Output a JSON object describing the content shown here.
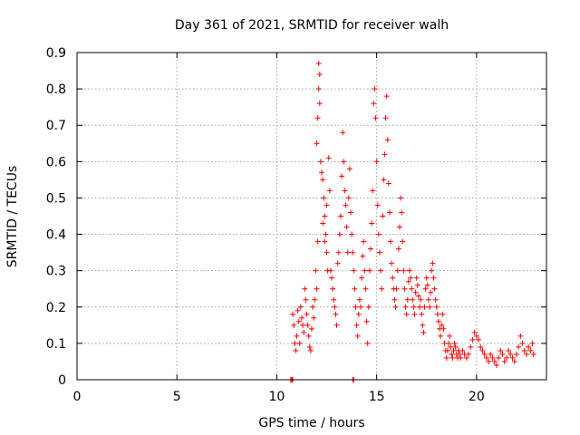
{
  "chart_data": {
    "type": "scatter",
    "title": "Day 361 of 2021, SRMTID for receiver walh",
    "xlabel": "GPS time / hours",
    "ylabel": "SRMTID / TECUs",
    "xlim": [
      0,
      23.5
    ],
    "ylim": [
      0,
      0.9
    ],
    "x_ticks": [
      0,
      5,
      10,
      15,
      20
    ],
    "y_ticks": [
      0,
      0.1,
      0.2,
      0.3,
      0.4,
      0.5,
      0.6,
      0.7,
      0.8,
      0.9
    ],
    "x_tick_labels": [
      "0",
      "5",
      "10",
      "15",
      "20"
    ],
    "y_tick_labels": [
      "0",
      "0.1",
      "0.2",
      "0.3",
      "0.4",
      "0.5",
      "0.6",
      "0.7",
      "0.8",
      "0.9"
    ],
    "grid": true,
    "marker": "+",
    "color": "#ff0000",
    "series": [
      {
        "name": "SRMTID",
        "points": [
          [
            10.7,
            0.0
          ],
          [
            10.75,
            0.0
          ],
          [
            10.8,
            0.0
          ],
          [
            13.8,
            0.0
          ],
          [
            13.85,
            0.0
          ],
          [
            10.8,
            0.18
          ],
          [
            10.85,
            0.15
          ],
          [
            10.9,
            0.1
          ],
          [
            10.95,
            0.08
          ],
          [
            11.0,
            0.12
          ],
          [
            11.05,
            0.19
          ],
          [
            11.1,
            0.16
          ],
          [
            11.15,
            0.1
          ],
          [
            11.2,
            0.2
          ],
          [
            11.25,
            0.17
          ],
          [
            11.3,
            0.15
          ],
          [
            11.35,
            0.13
          ],
          [
            11.4,
            0.25
          ],
          [
            11.45,
            0.22
          ],
          [
            11.5,
            0.18
          ],
          [
            11.55,
            0.15
          ],
          [
            11.6,
            0.12
          ],
          [
            11.65,
            0.09
          ],
          [
            11.7,
            0.08
          ],
          [
            11.75,
            0.14
          ],
          [
            11.8,
            0.2
          ],
          [
            11.85,
            0.17
          ],
          [
            11.9,
            0.22
          ],
          [
            11.95,
            0.3
          ],
          [
            12.0,
            0.25
          ],
          [
            12.05,
            0.38
          ],
          [
            12.0,
            0.65
          ],
          [
            12.05,
            0.72
          ],
          [
            12.1,
            0.87
          ],
          [
            12.15,
            0.84
          ],
          [
            12.1,
            0.8
          ],
          [
            12.15,
            0.76
          ],
          [
            12.2,
            0.6
          ],
          [
            12.25,
            0.57
          ],
          [
            12.3,
            0.55
          ],
          [
            12.35,
            0.5
          ],
          [
            12.4,
            0.45
          ],
          [
            12.45,
            0.4
          ],
          [
            12.5,
            0.35
          ],
          [
            12.55,
            0.3
          ],
          [
            12.3,
            0.43
          ],
          [
            12.4,
            0.38
          ],
          [
            12.5,
            0.48
          ],
          [
            12.6,
            0.61
          ],
          [
            12.65,
            0.52
          ],
          [
            12.7,
            0.3
          ],
          [
            12.75,
            0.28
          ],
          [
            12.8,
            0.25
          ],
          [
            12.85,
            0.22
          ],
          [
            12.9,
            0.2
          ],
          [
            12.95,
            0.18
          ],
          [
            13.0,
            0.15
          ],
          [
            13.05,
            0.32
          ],
          [
            13.1,
            0.35
          ],
          [
            13.15,
            0.4
          ],
          [
            13.2,
            0.45
          ],
          [
            13.25,
            0.56
          ],
          [
            13.3,
            0.68
          ],
          [
            13.35,
            0.6
          ],
          [
            13.4,
            0.52
          ],
          [
            13.45,
            0.48
          ],
          [
            13.5,
            0.42
          ],
          [
            13.55,
            0.35
          ],
          [
            13.6,
            0.5
          ],
          [
            13.65,
            0.58
          ],
          [
            13.7,
            0.46
          ],
          [
            13.75,
            0.4
          ],
          [
            13.8,
            0.35
          ],
          [
            13.85,
            0.3
          ],
          [
            13.9,
            0.25
          ],
          [
            13.95,
            0.2
          ],
          [
            14.0,
            0.15
          ],
          [
            14.05,
            0.12
          ],
          [
            14.1,
            0.18
          ],
          [
            14.15,
            0.22
          ],
          [
            14.2,
            0.2
          ],
          [
            14.25,
            0.28
          ],
          [
            14.3,
            0.34
          ],
          [
            14.35,
            0.38
          ],
          [
            14.4,
            0.3
          ],
          [
            14.45,
            0.25
          ],
          [
            14.5,
            0.16
          ],
          [
            14.55,
            0.1
          ],
          [
            14.6,
            0.2
          ],
          [
            14.65,
            0.3
          ],
          [
            14.7,
            0.36
          ],
          [
            14.75,
            0.43
          ],
          [
            14.8,
            0.52
          ],
          [
            14.85,
            0.76
          ],
          [
            14.9,
            0.8
          ],
          [
            14.95,
            0.72
          ],
          [
            15.0,
            0.6
          ],
          [
            15.05,
            0.48
          ],
          [
            15.1,
            0.4
          ],
          [
            15.15,
            0.35
          ],
          [
            15.2,
            0.3
          ],
          [
            15.25,
            0.25
          ],
          [
            15.3,
            0.45
          ],
          [
            15.35,
            0.55
          ],
          [
            15.4,
            0.62
          ],
          [
            15.45,
            0.72
          ],
          [
            15.5,
            0.78
          ],
          [
            15.55,
            0.66
          ],
          [
            15.6,
            0.54
          ],
          [
            15.65,
            0.46
          ],
          [
            15.7,
            0.38
          ],
          [
            15.75,
            0.32
          ],
          [
            15.8,
            0.28
          ],
          [
            15.85,
            0.25
          ],
          [
            15.9,
            0.22
          ],
          [
            15.95,
            0.2
          ],
          [
            16.0,
            0.25
          ],
          [
            16.05,
            0.3
          ],
          [
            16.1,
            0.36
          ],
          [
            16.15,
            0.42
          ],
          [
            16.2,
            0.5
          ],
          [
            16.25,
            0.46
          ],
          [
            16.3,
            0.38
          ],
          [
            16.35,
            0.3
          ],
          [
            16.4,
            0.25
          ],
          [
            16.45,
            0.2
          ],
          [
            16.5,
            0.18
          ],
          [
            16.55,
            0.22
          ],
          [
            16.6,
            0.27
          ],
          [
            16.65,
            0.3
          ],
          [
            16.7,
            0.28
          ],
          [
            16.75,
            0.25
          ],
          [
            16.8,
            0.22
          ],
          [
            16.85,
            0.2
          ],
          [
            16.9,
            0.18
          ],
          [
            16.95,
            0.24
          ],
          [
            17.0,
            0.28
          ],
          [
            17.05,
            0.26
          ],
          [
            17.1,
            0.23
          ],
          [
            17.15,
            0.2
          ],
          [
            17.2,
            0.22
          ],
          [
            17.25,
            0.18
          ],
          [
            17.3,
            0.15
          ],
          [
            17.35,
            0.13
          ],
          [
            17.4,
            0.2
          ],
          [
            17.45,
            0.25
          ],
          [
            17.5,
            0.28
          ],
          [
            17.55,
            0.26
          ],
          [
            17.6,
            0.22
          ],
          [
            17.65,
            0.2
          ],
          [
            17.7,
            0.24
          ],
          [
            17.75,
            0.3
          ],
          [
            17.8,
            0.32
          ],
          [
            17.85,
            0.28
          ],
          [
            17.9,
            0.25
          ],
          [
            17.95,
            0.22
          ],
          [
            18.0,
            0.2
          ],
          [
            18.05,
            0.18
          ],
          [
            18.1,
            0.16
          ],
          [
            18.15,
            0.14
          ],
          [
            18.2,
            0.12
          ],
          [
            18.25,
            0.15
          ],
          [
            18.3,
            0.18
          ],
          [
            18.35,
            0.14
          ],
          [
            18.4,
            0.1
          ],
          [
            18.45,
            0.08
          ],
          [
            18.5,
            0.06
          ],
          [
            18.55,
            0.08
          ],
          [
            18.6,
            0.1
          ],
          [
            18.65,
            0.12
          ],
          [
            18.7,
            0.09
          ],
          [
            18.75,
            0.07
          ],
          [
            18.8,
            0.06
          ],
          [
            18.85,
            0.08
          ],
          [
            18.9,
            0.1
          ],
          [
            18.95,
            0.09
          ],
          [
            19.0,
            0.07
          ],
          [
            19.05,
            0.06
          ],
          [
            19.1,
            0.08
          ],
          [
            19.15,
            0.07
          ],
          [
            19.2,
            0.06
          ],
          [
            19.3,
            0.08
          ],
          [
            19.4,
            0.07
          ],
          [
            19.5,
            0.06
          ],
          [
            19.6,
            0.07
          ],
          [
            19.7,
            0.09
          ],
          [
            19.8,
            0.11
          ],
          [
            19.9,
            0.13
          ],
          [
            20.0,
            0.12
          ],
          [
            20.1,
            0.11
          ],
          [
            20.2,
            0.09
          ],
          [
            20.3,
            0.08
          ],
          [
            20.4,
            0.07
          ],
          [
            20.5,
            0.06
          ],
          [
            20.6,
            0.05
          ],
          [
            20.7,
            0.07
          ],
          [
            20.8,
            0.06
          ],
          [
            20.9,
            0.05
          ],
          [
            21.0,
            0.04
          ],
          [
            21.1,
            0.06
          ],
          [
            21.2,
            0.08
          ],
          [
            21.3,
            0.07
          ],
          [
            21.4,
            0.05
          ],
          [
            21.5,
            0.06
          ],
          [
            21.6,
            0.08
          ],
          [
            21.7,
            0.07
          ],
          [
            21.8,
            0.06
          ],
          [
            21.9,
            0.05
          ],
          [
            22.0,
            0.07
          ],
          [
            22.1,
            0.09
          ],
          [
            22.2,
            0.12
          ],
          [
            22.3,
            0.1
          ],
          [
            22.4,
            0.08
          ],
          [
            22.5,
            0.07
          ],
          [
            22.6,
            0.09
          ],
          [
            22.7,
            0.08
          ],
          [
            22.8,
            0.1
          ],
          [
            22.85,
            0.07
          ]
        ]
      }
    ]
  }
}
